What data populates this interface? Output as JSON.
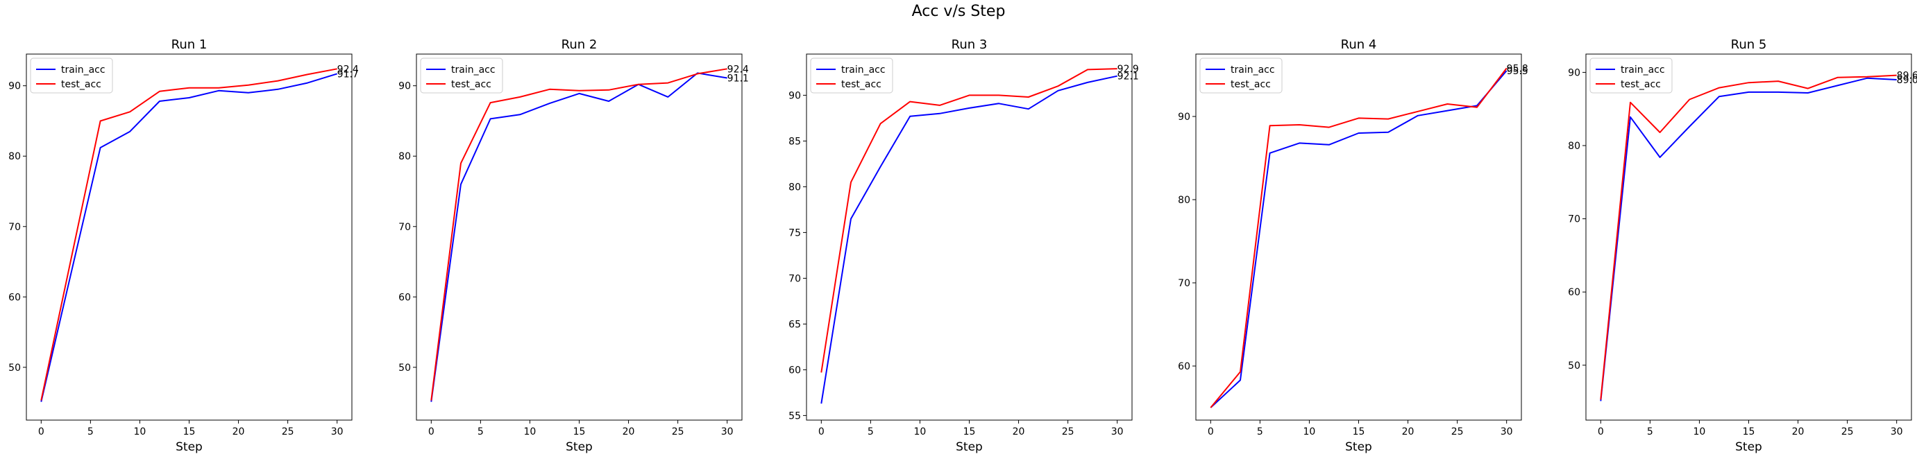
{
  "figure": {
    "suptitle": "Acc v/s Step"
  },
  "colors": {
    "train": "#0000ff",
    "test": "#ff0000",
    "axes": "#000000",
    "legend_edge": "#cccccc"
  },
  "chart_data": [
    {
      "type": "line",
      "title": "Run 1",
      "xlabel": "Step",
      "ylabel": "",
      "x": [
        0,
        3,
        6,
        9,
        12,
        15,
        18,
        21,
        24,
        27,
        30
      ],
      "xlim": [
        -1.5,
        31.5
      ],
      "ylim": [
        42.5,
        94.5
      ],
      "xticks": [
        0,
        5,
        10,
        15,
        20,
        25,
        30
      ],
      "yticks": [
        50,
        60,
        70,
        80,
        90
      ],
      "series": [
        {
          "name": "train_acc",
          "color": "#0000ff",
          "values": [
            45.1,
            63.2,
            81.2,
            83.5,
            87.8,
            88.3,
            89.3,
            89.0,
            89.5,
            90.4,
            91.7
          ]
        },
        {
          "name": "test_acc",
          "color": "#ff0000",
          "values": [
            45.3,
            65.2,
            85.0,
            86.3,
            89.2,
            89.7,
            89.7,
            90.1,
            90.7,
            91.6,
            92.4
          ]
        }
      ],
      "end_labels": [
        "91.7",
        "92.4"
      ],
      "legend": "upper left",
      "grid": false
    },
    {
      "type": "line",
      "title": "Run 2",
      "xlabel": "Step",
      "ylabel": "",
      "x": [
        0,
        3,
        6,
        9,
        12,
        15,
        18,
        21,
        24,
        27,
        30
      ],
      "xlim": [
        -1.5,
        31.5
      ],
      "ylim": [
        42.5,
        94.5
      ],
      "xticks": [
        0,
        5,
        10,
        15,
        20,
        25,
        30
      ],
      "yticks": [
        50,
        60,
        70,
        80,
        90
      ],
      "series": [
        {
          "name": "train_acc",
          "color": "#0000ff",
          "values": [
            45.1,
            76.0,
            85.3,
            85.9,
            87.5,
            88.9,
            87.8,
            90.2,
            88.4,
            91.8,
            91.1
          ]
        },
        {
          "name": "test_acc",
          "color": "#ff0000",
          "values": [
            45.3,
            79.0,
            87.6,
            88.4,
            89.5,
            89.3,
            89.4,
            90.2,
            90.4,
            91.7,
            92.4
          ]
        }
      ],
      "end_labels": [
        "91.1",
        "92.4"
      ],
      "legend": "upper left",
      "grid": false
    },
    {
      "type": "line",
      "title": "Run 3",
      "xlabel": "Step",
      "ylabel": "",
      "x": [
        0,
        3,
        6,
        9,
        12,
        15,
        18,
        21,
        24,
        27,
        30
      ],
      "xlim": [
        -1.5,
        31.5
      ],
      "ylim": [
        54.5,
        94.5
      ],
      "xticks": [
        0,
        5,
        10,
        15,
        20,
        25,
        30
      ],
      "yticks": [
        55,
        60,
        65,
        70,
        75,
        80,
        85,
        90
      ],
      "series": [
        {
          "name": "train_acc",
          "color": "#0000ff",
          "values": [
            56.3,
            76.5,
            82.2,
            87.7,
            88.0,
            88.6,
            89.1,
            88.5,
            90.5,
            91.4,
            92.1
          ]
        },
        {
          "name": "test_acc",
          "color": "#ff0000",
          "values": [
            59.7,
            80.5,
            86.9,
            89.3,
            88.9,
            90.0,
            90.0,
            89.8,
            91.0,
            92.8,
            92.9
          ]
        }
      ],
      "end_labels": [
        "92.1",
        "92.9"
      ],
      "legend": "upper left",
      "grid": false
    },
    {
      "type": "line",
      "title": "Run 4",
      "xlabel": "Step",
      "ylabel": "",
      "x": [
        0,
        3,
        6,
        9,
        12,
        15,
        18,
        21,
        24,
        27,
        30
      ],
      "xlim": [
        -1.5,
        31.5
      ],
      "ylim": [
        53.5,
        97.5
      ],
      "xticks": [
        0,
        5,
        10,
        15,
        20,
        25,
        30
      ],
      "yticks": [
        60,
        70,
        80,
        90
      ],
      "series": [
        {
          "name": "train_acc",
          "color": "#0000ff",
          "values": [
            55.0,
            58.3,
            85.6,
            86.8,
            86.6,
            88.0,
            88.1,
            90.1,
            90.7,
            91.3,
            95.5
          ]
        },
        {
          "name": "test_acc",
          "color": "#ff0000",
          "values": [
            55.0,
            59.3,
            88.9,
            89.0,
            88.7,
            89.8,
            89.7,
            90.6,
            91.5,
            91.1,
            95.8
          ]
        }
      ],
      "end_labels": [
        "95.5",
        "95.8"
      ],
      "legend": "upper left",
      "grid": false
    },
    {
      "type": "line",
      "title": "Run 5",
      "xlabel": "Step",
      "ylabel": "",
      "x": [
        0,
        3,
        6,
        9,
        12,
        15,
        18,
        21,
        24,
        27,
        30
      ],
      "xlim": [
        -1.5,
        31.5
      ],
      "ylim": [
        42.5,
        92.5
      ],
      "xticks": [
        0,
        5,
        10,
        15,
        20,
        25,
        30
      ],
      "yticks": [
        50,
        60,
        70,
        80,
        90
      ],
      "series": [
        {
          "name": "train_acc",
          "color": "#0000ff",
          "values": [
            45.1,
            83.9,
            78.4,
            82.6,
            86.7,
            87.3,
            87.3,
            87.2,
            88.2,
            89.2,
            89.0
          ]
        },
        {
          "name": "test_acc",
          "color": "#ff0000",
          "values": [
            45.3,
            85.9,
            81.8,
            86.3,
            87.9,
            88.6,
            88.8,
            87.8,
            89.3,
            89.4,
            89.6
          ]
        }
      ],
      "end_labels": [
        "89.0",
        "89.6"
      ],
      "legend": "upper left",
      "grid": false
    }
  ]
}
